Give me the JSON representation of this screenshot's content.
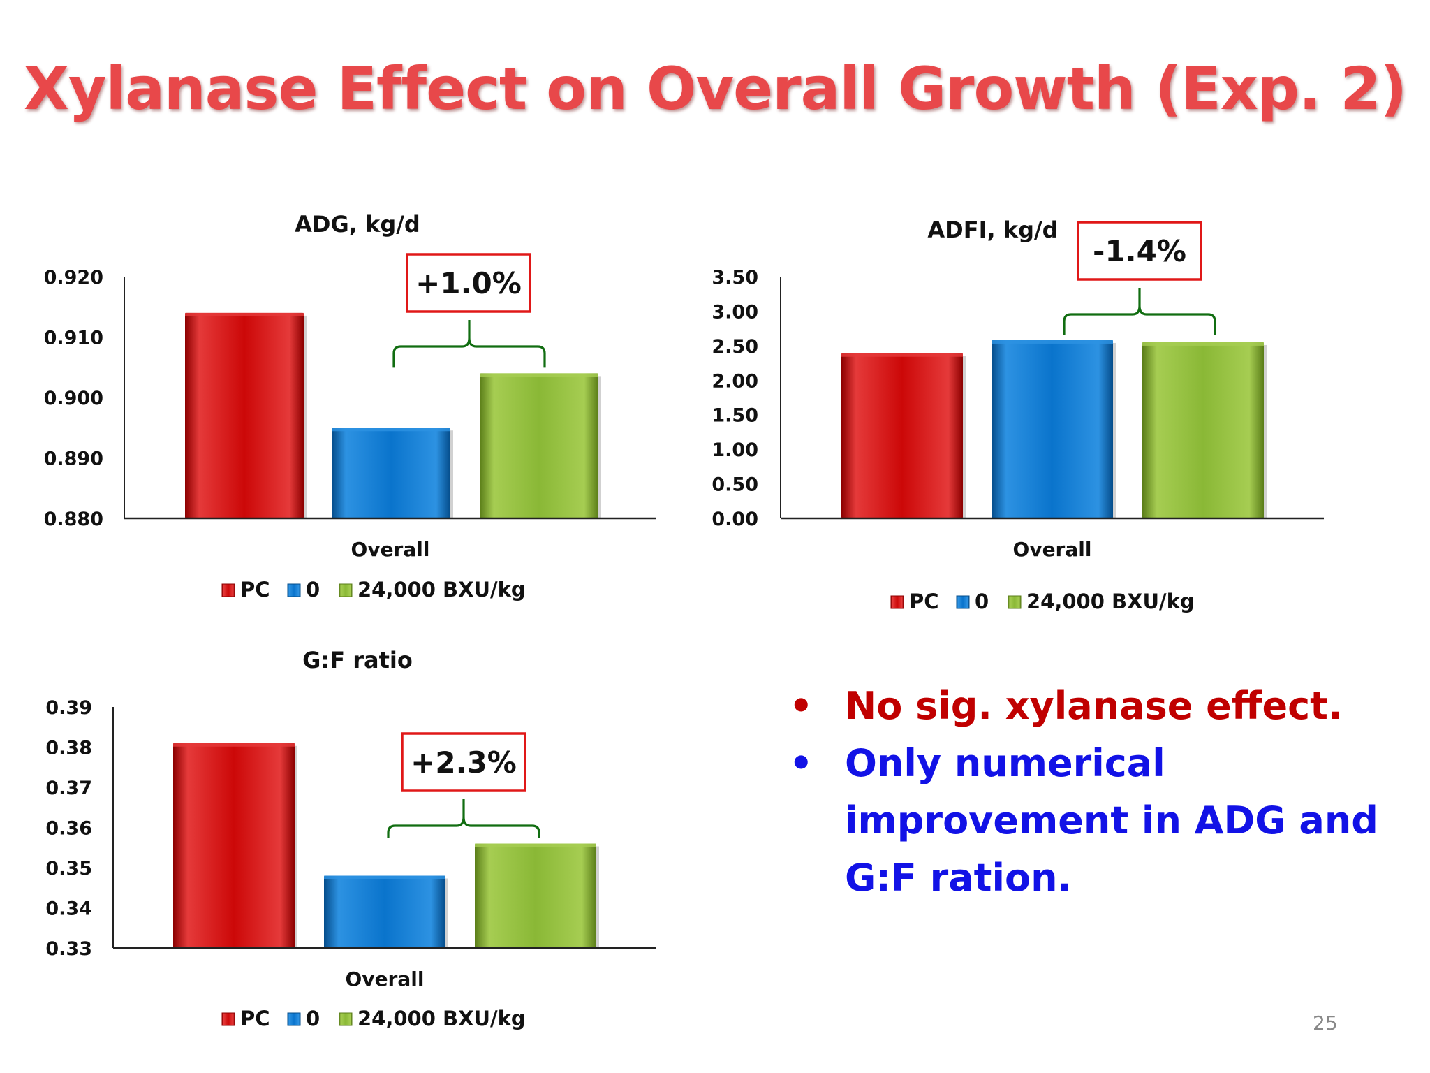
{
  "title": "Xylanase Effect on Overall Growth (Exp. 2)",
  "colors": {
    "title": "#e8484a",
    "series": [
      "#cc0808",
      "#0a74cc",
      "#8ab836"
    ],
    "series_dark": [
      "#8c0000",
      "#044c8a",
      "#5a7d18"
    ],
    "series_light": [
      "#e53a3a",
      "#2d92e2",
      "#a6cd52"
    ],
    "brace": "#116d11",
    "annotation_box": "#e01818",
    "bullet_red": "#c00000",
    "bullet_blue": "#1212e6"
  },
  "chart_data": [
    {
      "type": "bar",
      "title": "ADG, kg/d",
      "categories": [
        "Overall"
      ],
      "xlabel": "Overall",
      "ylim": [
        0.88,
        0.92
      ],
      "ticks": [
        "0.880",
        "0.890",
        "0.900",
        "0.910",
        "0.920"
      ],
      "tick_values": [
        0.88,
        0.89,
        0.9,
        0.91,
        0.92
      ],
      "series": [
        {
          "name": "PC",
          "values": [
            0.914
          ]
        },
        {
          "name": "0",
          "values": [
            0.895
          ]
        },
        {
          "name": "24,000 BXU/kg",
          "values": [
            0.904
          ]
        }
      ],
      "annotation": "+1.0%",
      "grid": false,
      "legend": "bottom"
    },
    {
      "type": "bar",
      "title": "ADFI, kg/d",
      "categories": [
        "Overall"
      ],
      "xlabel": "Overall",
      "ylim": [
        0,
        3.5
      ],
      "ticks": [
        "0.00",
        "0.50",
        "1.00",
        "1.50",
        "2.00",
        "2.50",
        "3.00",
        "3.50"
      ],
      "tick_values": [
        0,
        0.5,
        1.0,
        1.5,
        2.0,
        2.5,
        3.0,
        3.5
      ],
      "series": [
        {
          "name": "PC",
          "values": [
            2.39
          ]
        },
        {
          "name": "0",
          "values": [
            2.58
          ]
        },
        {
          "name": "24,000 BXU/kg",
          "values": [
            2.55
          ]
        }
      ],
      "annotation": "-1.4%",
      "grid": false,
      "legend": "bottom"
    },
    {
      "type": "bar",
      "title": "G:F ratio",
      "categories": [
        "Overall"
      ],
      "xlabel": "Overall",
      "ylim": [
        0.33,
        0.39
      ],
      "ticks": [
        "0.33",
        "0.34",
        "0.35",
        "0.36",
        "0.37",
        "0.38",
        "0.39"
      ],
      "tick_values": [
        0.33,
        0.34,
        0.35,
        0.36,
        0.37,
        0.38,
        0.39
      ],
      "series": [
        {
          "name": "PC",
          "values": [
            0.381
          ]
        },
        {
          "name": "0",
          "values": [
            0.348
          ]
        },
        {
          "name": "24,000 BXU/kg",
          "values": [
            0.356
          ]
        }
      ],
      "annotation": "+2.3%",
      "grid": false,
      "legend": "bottom"
    }
  ],
  "bullets": [
    {
      "symbol": "•",
      "text": "No sig. xylanase effect.",
      "color": "#c00000"
    },
    {
      "symbol": "•",
      "text": "Only numerical improvement in ADG and G:F ration.",
      "color": "#1212e6"
    }
  ],
  "page_number": "25"
}
